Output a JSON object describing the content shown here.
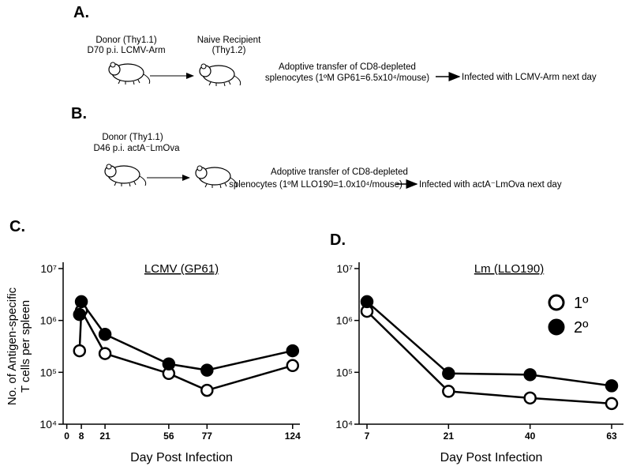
{
  "panel_a": {
    "label": "A.",
    "donor": "Donor (Thy1.1)",
    "donor_detail": "D70 p.i. LCMV-Arm",
    "recipient": "Naive Recipient",
    "recipient_detail": "(Thy1.2)",
    "transfer_line1": "Adoptive transfer of CD8-depleted",
    "transfer_line2": "splenocytes (1ºM GP61=6.5x10⁴/mouse)",
    "outcome": "Infected with LCMV-Arm next day"
  },
  "panel_b": {
    "label": "B.",
    "donor": "Donor (Thy1.1)",
    "donor_detail": "D46 p.i. actA⁻LmOva",
    "transfer_line1": "Adoptive transfer of CD8-depleted",
    "transfer_line2": "splenocytes (1ºM LLO190=1.0x10⁴/mouse)",
    "outcome": "Infected with actA⁻LmOva next day"
  },
  "chart_data": [
    {
      "type": "line",
      "panel": "C.",
      "title": "LCMV (GP61)",
      "xlabel": "Day Post Infection",
      "ylabel_lines": [
        "No. of Antigen-specific",
        "T cells per spleen"
      ],
      "yscale": "log",
      "ylim": [
        10000,
        10000000
      ],
      "yticks": [
        {
          "value": 10000,
          "label": "10⁴"
        },
        {
          "value": 100000,
          "label": "10⁵"
        },
        {
          "value": 1000000,
          "label": "10⁶"
        },
        {
          "value": 10000000,
          "label": "10⁷"
        }
      ],
      "xlim": [
        -2,
        128
      ],
      "xticks": [
        0,
        8,
        21,
        56,
        77,
        124
      ],
      "series": [
        {
          "name": "1º",
          "color": "#000000",
          "filled": false,
          "x": [
            7,
            8,
            21,
            56,
            77,
            124
          ],
          "values": [
            260000,
            1550000,
            230000,
            95000,
            45000,
            135000
          ]
        },
        {
          "name": "2º",
          "color": "#000000",
          "filled": true,
          "x": [
            7,
            8,
            21,
            56,
            77,
            124
          ],
          "values": [
            1300000,
            2300000,
            540000,
            145000,
            110000,
            260000
          ]
        }
      ]
    },
    {
      "type": "line",
      "panel": "D.",
      "title": "Lm (LLO190)",
      "xlabel": "Day Post Infection",
      "yscale": "log",
      "ylim": [
        10000,
        10000000
      ],
      "yticks": [
        {
          "value": 10000,
          "label": "10⁴"
        },
        {
          "value": 100000,
          "label": "10⁵"
        },
        {
          "value": 1000000,
          "label": "10⁶"
        },
        {
          "value": 10000000,
          "label": "10⁷"
        }
      ],
      "categories": [
        "7",
        "21",
        "40",
        "63"
      ],
      "legend": "upper right",
      "series": [
        {
          "name": "1º",
          "color": "#000000",
          "filled": false,
          "values": [
            1500000,
            43000,
            32000,
            25000
          ]
        },
        {
          "name": "2º",
          "color": "#000000",
          "filled": true,
          "values": [
            2300000,
            95000,
            90000,
            55000
          ]
        }
      ]
    }
  ]
}
